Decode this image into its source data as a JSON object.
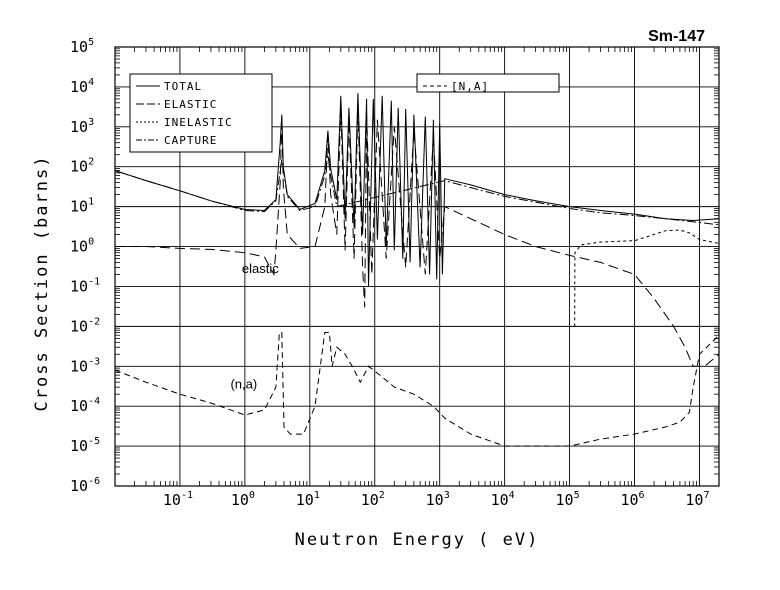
{
  "chart_data": {
    "type": "line",
    "title": "Sm-147",
    "xlabel": "Neutron Energy ( eV)",
    "ylabel": "Cross Section (barns)",
    "x_scale": "log",
    "y_scale": "log",
    "xlim": [
      0.01,
      20000000
    ],
    "ylim": [
      1e-06,
      100000
    ],
    "grid": true,
    "legend_main": {
      "placement": "top-left",
      "entries": [
        "TOTAL",
        "ELASTIC",
        "INELASTIC",
        "CAPTURE"
      ]
    },
    "legend_secondary": {
      "placement": "top-center",
      "entries": [
        "[N,A]"
      ]
    },
    "x_ticks": [
      {
        "value": 0.1,
        "base": "10",
        "exp": "-1"
      },
      {
        "value": 1,
        "base": "10",
        "exp": "0"
      },
      {
        "value": 10,
        "base": "10",
        "exp": "1"
      },
      {
        "value": 100,
        "base": "10",
        "exp": "2"
      },
      {
        "value": 1000,
        "base": "10",
        "exp": "3"
      },
      {
        "value": 10000,
        "base": "10",
        "exp": "4"
      },
      {
        "value": 100000,
        "base": "10",
        "exp": "5"
      },
      {
        "value": 1000000,
        "base": "10",
        "exp": "6"
      },
      {
        "value": 10000000,
        "base": "10",
        "exp": "7"
      }
    ],
    "y_ticks": [
      {
        "value": 1e-06,
        "base": "10",
        "exp": "-6"
      },
      {
        "value": 1e-05,
        "base": "10",
        "exp": "-5"
      },
      {
        "value": 0.0001,
        "base": "10",
        "exp": "-4"
      },
      {
        "value": 0.001,
        "base": "10",
        "exp": "-3"
      },
      {
        "value": 0.01,
        "base": "10",
        "exp": "-2"
      },
      {
        "value": 0.1,
        "base": "10",
        "exp": "-1"
      },
      {
        "value": 1,
        "base": "10",
        "exp": "0"
      },
      {
        "value": 10,
        "base": "10",
        "exp": "1"
      },
      {
        "value": 100,
        "base": "10",
        "exp": "2"
      },
      {
        "value": 1000,
        "base": "10",
        "exp": "3"
      },
      {
        "value": 10000,
        "base": "10",
        "exp": "4"
      },
      {
        "value": 100000,
        "base": "10",
        "exp": "5"
      }
    ],
    "annotations": [
      {
        "text": "elastic",
        "x": 0.9,
        "y": 0.22
      },
      {
        "text": "(n,a)",
        "x": 0.6,
        "y": 0.00028
      }
    ],
    "series": [
      {
        "name": "TOTAL",
        "dash": "solid",
        "points": [
          [
            0.01,
            80
          ],
          [
            0.03,
            45
          ],
          [
            0.1,
            25
          ],
          [
            0.3,
            14
          ],
          [
            1,
            8.5
          ],
          [
            2,
            8
          ],
          [
            3,
            15
          ],
          [
            3.5,
            400
          ],
          [
            3.7,
            2000
          ],
          [
            3.9,
            100
          ],
          [
            4.5,
            20
          ],
          [
            7,
            8.5
          ],
          [
            12,
            12
          ],
          [
            17,
            80
          ],
          [
            19,
            800
          ],
          [
            21,
            90
          ],
          [
            26,
            15
          ],
          [
            30,
            6000
          ],
          [
            35,
            5
          ],
          [
            40,
            3000
          ],
          [
            48,
            3
          ],
          [
            55,
            7000
          ],
          [
            65,
            2
          ],
          [
            75,
            5000
          ],
          [
            80,
            0.1
          ],
          [
            95,
            5000
          ],
          [
            110,
            1.5
          ],
          [
            130,
            6000
          ],
          [
            150,
            1
          ],
          [
            180,
            4500
          ],
          [
            200,
            0.8
          ],
          [
            230,
            3000
          ],
          [
            270,
            0.5
          ],
          [
            300,
            2800
          ],
          [
            350,
            0.4
          ],
          [
            400,
            2000
          ],
          [
            500,
            0.3
          ],
          [
            600,
            1800
          ],
          [
            700,
            0.2
          ],
          [
            800,
            1500
          ],
          [
            900,
            0.15
          ],
          [
            1000,
            1200
          ],
          [
            1100,
            0.2
          ],
          [
            1200,
            50
          ],
          [
            3000,
            35
          ],
          [
            10000,
            20
          ],
          [
            30000,
            14
          ],
          [
            100000,
            10
          ],
          [
            300000,
            8
          ],
          [
            1000000,
            6.5
          ],
          [
            3000000,
            5
          ],
          [
            8000000,
            4.5
          ],
          [
            20000000,
            5
          ]
        ]
      },
      {
        "name": "ELASTIC",
        "dash": "long",
        "points": [
          [
            0.01,
            1
          ],
          [
            0.03,
            1
          ],
          [
            0.1,
            0.9
          ],
          [
            0.3,
            0.85
          ],
          [
            1,
            0.7
          ],
          [
            2,
            0.55
          ],
          [
            2.8,
            0.2
          ],
          [
            3,
            0.8
          ],
          [
            3.5,
            40
          ],
          [
            3.7,
            1800
          ],
          [
            3.9,
            30
          ],
          [
            4.5,
            2
          ],
          [
            7,
            0.9
          ],
          [
            12,
            1
          ],
          [
            17,
            10
          ],
          [
            19,
            600
          ],
          [
            21,
            20
          ],
          [
            26,
            2
          ],
          [
            30,
            3000
          ],
          [
            35,
            0.8
          ],
          [
            40,
            1500
          ],
          [
            48,
            0.5
          ],
          [
            55,
            3000
          ],
          [
            65,
            0.3
          ],
          [
            70,
            0.03
          ],
          [
            75,
            2000
          ],
          [
            90,
            0.2
          ],
          [
            110,
            1500
          ],
          [
            150,
            0.5
          ],
          [
            200,
            1000
          ],
          [
            300,
            0.3
          ],
          [
            400,
            800
          ],
          [
            600,
            0.2
          ],
          [
            800,
            600
          ],
          [
            1000,
            0.5
          ],
          [
            1200,
            10
          ],
          [
            3000,
            5
          ],
          [
            10000,
            2
          ],
          [
            30000,
            1
          ],
          [
            100000,
            0.6
          ],
          [
            300000,
            0.4
          ],
          [
            1000000,
            0.2
          ],
          [
            2000000,
            0.05
          ],
          [
            4000000,
            0.01
          ],
          [
            6000000,
            0.003
          ],
          [
            8000000,
            0.001
          ],
          [
            12000000,
            0.001
          ],
          [
            20000000,
            0.002
          ]
        ]
      },
      {
        "name": "INELASTIC",
        "dash": "short",
        "points": [
          [
            120000,
            0.01
          ],
          [
            121000,
            0.7
          ],
          [
            150000,
            1.1
          ],
          [
            300000,
            1.3
          ],
          [
            1000000,
            1.4
          ],
          [
            2000000,
            2
          ],
          [
            3000000,
            2.5
          ],
          [
            5000000,
            2.6
          ],
          [
            7000000,
            2.2
          ],
          [
            10000000,
            1.5
          ],
          [
            20000000,
            1.2
          ]
        ]
      },
      {
        "name": "CAPTURE",
        "dash": "dashdot",
        "points": [
          [
            0.01,
            80
          ],
          [
            0.03,
            45
          ],
          [
            0.1,
            25
          ],
          [
            0.3,
            14
          ],
          [
            1,
            8
          ],
          [
            2,
            7.5
          ],
          [
            3,
            14
          ],
          [
            3.7,
            150
          ],
          [
            4.5,
            18
          ],
          [
            7,
            8
          ],
          [
            12,
            10
          ],
          [
            17,
            60
          ],
          [
            19,
            200
          ],
          [
            21,
            60
          ],
          [
            26,
            10
          ],
          [
            1200,
            45
          ],
          [
            3000,
            30
          ],
          [
            10000,
            18
          ],
          [
            30000,
            13
          ],
          [
            100000,
            9
          ],
          [
            300000,
            7
          ],
          [
            1000000,
            6
          ],
          [
            3000000,
            5
          ],
          [
            10000000,
            4
          ],
          [
            20000000,
            3.5
          ]
        ]
      },
      {
        "name": "[N,A]",
        "dash": "dashed-thin",
        "points": [
          [
            0.01,
            0.0008
          ],
          [
            0.03,
            0.0004
          ],
          [
            0.1,
            0.0002
          ],
          [
            0.3,
            0.00012
          ],
          [
            1,
            6e-05
          ],
          [
            2,
            8e-05
          ],
          [
            3,
            0.0003
          ],
          [
            3.4,
            0.007
          ],
          [
            3.7,
            0.007
          ],
          [
            4,
            3e-05
          ],
          [
            5,
            2e-05
          ],
          [
            8,
            2e-05
          ],
          [
            12,
            0.0001
          ],
          [
            17,
            0.007
          ],
          [
            20,
            0.007
          ],
          [
            22,
            0.001
          ],
          [
            26,
            0.003
          ],
          [
            35,
            0.002
          ],
          [
            45,
            0.001
          ],
          [
            60,
            0.0004
          ],
          [
            80,
            0.001
          ],
          [
            120,
            0.0006
          ],
          [
            200,
            0.0003
          ],
          [
            400,
            0.0002
          ],
          [
            800,
            0.0001
          ],
          [
            1200,
            5e-05
          ],
          [
            3000,
            2e-05
          ],
          [
            10000,
            1e-05
          ],
          [
            100000,
            1e-05
          ],
          [
            300000,
            1.5e-05
          ],
          [
            1000000,
            2e-05
          ],
          [
            3000000,
            3e-05
          ],
          [
            5000000,
            4e-05
          ],
          [
            7000000,
            7e-05
          ],
          [
            8000000,
            0.0003
          ],
          [
            10000000,
            0.002
          ],
          [
            20000000,
            0.006
          ]
        ]
      }
    ]
  }
}
